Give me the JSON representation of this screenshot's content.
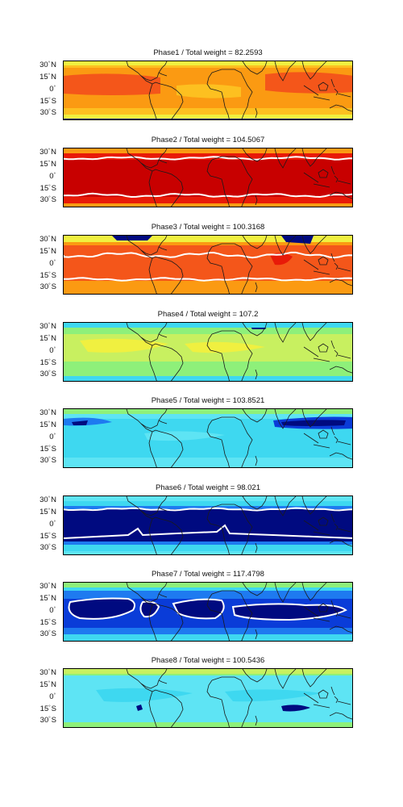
{
  "panels": [
    {
      "title": "Phase1 / Total weight = 82.2593",
      "scheme": "warm-light"
    },
    {
      "title": "Phase2 / Total weight = 104.5067",
      "scheme": "red-band"
    },
    {
      "title": "Phase3 / Total weight = 100.3168",
      "scheme": "orange-band"
    },
    {
      "title": "Phase4 / Total weight = 107.2",
      "scheme": "yellow-green"
    },
    {
      "title": "Phase5 / Total weight = 103.8521",
      "scheme": "cyan-blue"
    },
    {
      "title": "Phase6 / Total weight = 98.021",
      "scheme": "navy-band"
    },
    {
      "title": "Phase7 / Total weight = 117.4798",
      "scheme": "blue-blobs"
    },
    {
      "title": "Phase8 / Total weight = 100.5436",
      "scheme": "light-cyan"
    }
  ],
  "lat_labels": [
    "30",
    "N",
    "15",
    "N",
    "0",
    "15",
    "S",
    "30",
    "S"
  ],
  "degree": "°",
  "colors": {
    "dark_red": "#c80000",
    "red": "#e81a08",
    "orange_red": "#f4561a",
    "orange": "#fb9a12",
    "yellow_orange": "#fdc020",
    "yellow": "#f0f040",
    "yellow_green": "#c8f060",
    "green": "#8ef07a",
    "cyan": "#3ed8f0",
    "light_cyan": "#5ee4f4",
    "blue": "#1e7af0",
    "deep_blue": "#0a3cd8",
    "navy": "#000a80",
    "contour": "#ffffff",
    "coast": "#1a1a1a"
  }
}
